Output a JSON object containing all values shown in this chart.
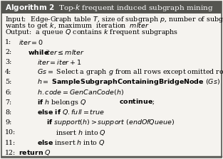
{
  "bg_color": "#e8e4dc",
  "title_bg": "#555550",
  "title_text_color": "#ffffff",
  "body_bg": "#f5f3ef",
  "border_color": "#555550",
  "font_size": 6.8,
  "title_font_size": 7.5,
  "fig_width": 3.13,
  "fig_height": 2.24,
  "dpi": 100
}
